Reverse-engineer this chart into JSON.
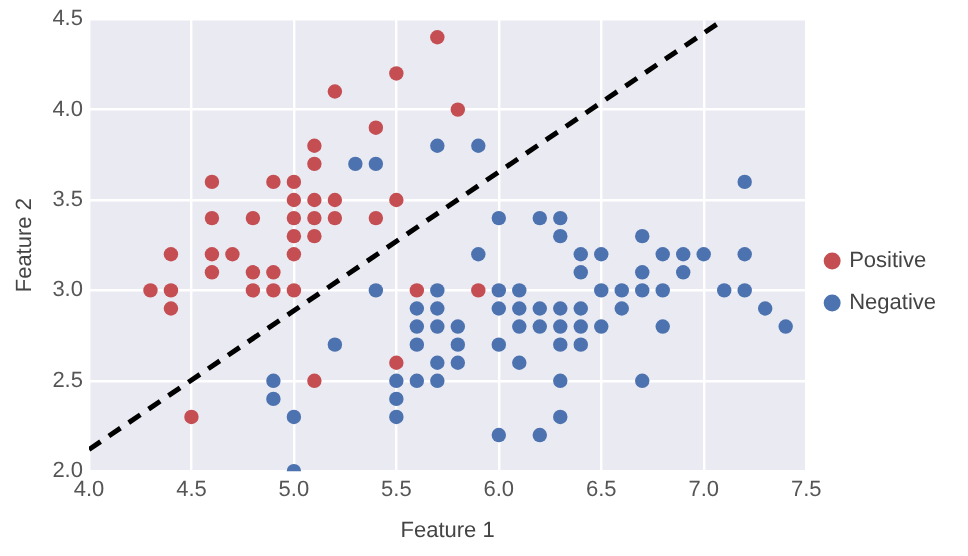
{
  "chart_data": {
    "type": "scatter",
    "xlabel": "Feature 1",
    "ylabel": "Feature 2",
    "xlim": [
      4.0,
      7.5
    ],
    "ylim": [
      2.0,
      4.5
    ],
    "xticks": [
      {
        "value": 4.0,
        "label": "4.0"
      },
      4.5,
      {
        "value": 5.0,
        "label": "5.0"
      },
      5.5,
      {
        "value": 6.0,
        "label": "6.0"
      },
      6.5,
      {
        "value": 7.0,
        "label": "7.0"
      },
      7.5
    ],
    "yticks": [
      {
        "value": 2.0,
        "label": "2.0"
      },
      2.5,
      {
        "value": 3.0,
        "label": "3.0"
      },
      3.5,
      {
        "value": 4.0,
        "label": "4.0"
      },
      4.5
    ],
    "grid": true,
    "legend": "right",
    "marker": "circle",
    "series": [
      {
        "name": "Positive",
        "color": "#c44e52",
        "x": [
          5.7,
          5.5,
          5.2,
          5.8,
          5.4,
          5.1,
          5.1,
          4.6,
          4.9,
          5.0,
          5.0,
          5.1,
          5.2,
          5.5,
          4.6,
          4.8,
          5.0,
          5.1,
          5.2,
          5.4,
          5.0,
          5.1,
          4.4,
          4.6,
          4.7,
          5.0,
          4.6,
          4.8,
          4.9,
          4.3,
          4.4,
          4.8,
          4.9,
          5.0,
          5.6,
          5.9,
          4.4,
          5.5,
          5.1,
          4.5
        ],
        "values": [
          4.4,
          4.2,
          4.1,
          4.0,
          3.9,
          3.8,
          3.7,
          3.6,
          3.6,
          3.6,
          3.5,
          3.5,
          3.5,
          3.5,
          3.4,
          3.4,
          3.4,
          3.4,
          3.4,
          3.4,
          3.3,
          3.3,
          3.2,
          3.2,
          3.2,
          3.2,
          3.1,
          3.1,
          3.1,
          3.0,
          3.0,
          3.0,
          3.0,
          3.0,
          3.0,
          3.0,
          2.9,
          2.6,
          2.5,
          2.3
        ]
      },
      {
        "name": "Negative",
        "color": "#4c72b0",
        "x": [
          5.3,
          5.4,
          5.7,
          5.9,
          7.2,
          6.0,
          6.2,
          6.3,
          6.3,
          6.7,
          5.9,
          6.4,
          6.5,
          6.8,
          6.9,
          7.0,
          7.2,
          6.4,
          6.7,
          6.9,
          5.4,
          5.7,
          6.0,
          6.1,
          6.5,
          6.6,
          6.7,
          6.8,
          7.1,
          7.2,
          5.6,
          5.7,
          6.0,
          6.1,
          6.2,
          6.3,
          6.4,
          6.6,
          7.3,
          5.6,
          5.7,
          5.8,
          6.1,
          6.2,
          6.3,
          6.4,
          6.5,
          6.8,
          7.4,
          5.2,
          5.6,
          5.8,
          6.0,
          6.3,
          6.4,
          5.7,
          5.8,
          6.1,
          4.9,
          5.5,
          5.6,
          5.7,
          6.3,
          6.7,
          4.9,
          5.5,
          5.0,
          5.5,
          6.3,
          6.0,
          6.2,
          5.0
        ],
        "values": [
          3.7,
          3.7,
          3.8,
          3.8,
          3.6,
          3.4,
          3.4,
          3.4,
          3.3,
          3.3,
          3.2,
          3.2,
          3.2,
          3.2,
          3.2,
          3.2,
          3.2,
          3.1,
          3.1,
          3.1,
          3.0,
          3.0,
          3.0,
          3.0,
          3.0,
          3.0,
          3.0,
          3.0,
          3.0,
          3.0,
          2.9,
          2.9,
          2.9,
          2.9,
          2.9,
          2.9,
          2.9,
          2.9,
          2.9,
          2.8,
          2.8,
          2.8,
          2.8,
          2.8,
          2.8,
          2.8,
          2.8,
          2.8,
          2.8,
          2.7,
          2.7,
          2.7,
          2.7,
          2.7,
          2.7,
          2.6,
          2.6,
          2.6,
          2.5,
          2.5,
          2.5,
          2.5,
          2.5,
          2.5,
          2.4,
          2.4,
          2.3,
          2.3,
          2.3,
          2.2,
          2.2,
          2.0
        ]
      },
      {
        "type": "line",
        "color": "#000000",
        "line_style": "dashed",
        "marker": "none",
        "x": [
          4.0,
          7.1
        ],
        "values": [
          2.12,
          4.5
        ]
      }
    ]
  }
}
